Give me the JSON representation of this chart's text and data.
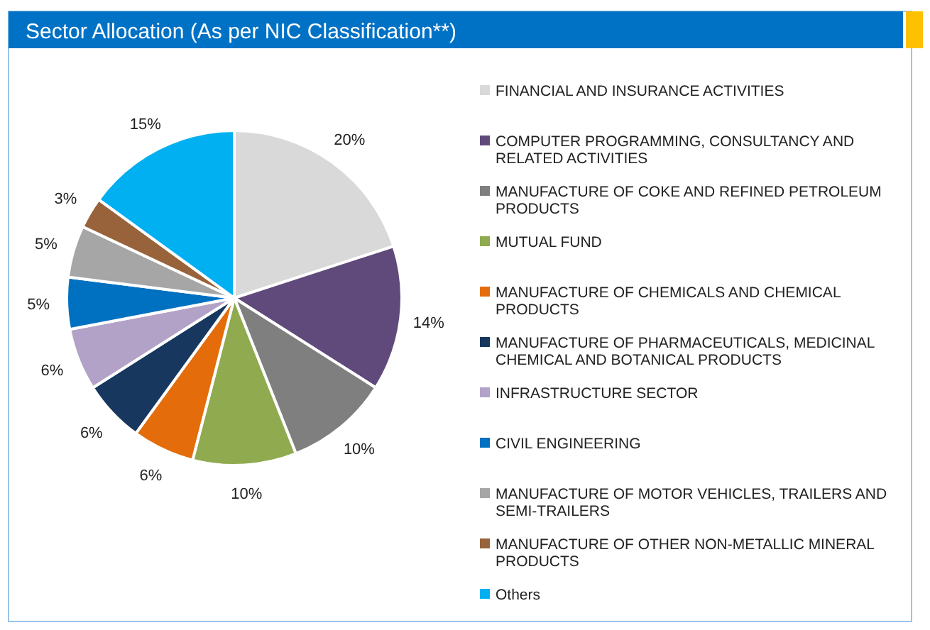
{
  "chart_data": {
    "type": "pie",
    "title": "Sector Allocation (As per NIC Classification**)",
    "categories": [
      "FINANCIAL AND INSURANCE ACTIVITIES",
      "COMPUTER PROGRAMMING, CONSULTANCY AND RELATED ACTIVITIES",
      "MANUFACTURE OF COKE AND REFINED PETROLEUM PRODUCTS",
      "MUTUAL FUND",
      "MANUFACTURE OF CHEMICALS AND CHEMICAL PRODUCTS",
      "MANUFACTURE OF PHARMACEUTICALS, MEDICINAL CHEMICAL AND BOTANICAL PRODUCTS",
      "INFRASTRUCTURE SECTOR",
      "CIVIL ENGINEERING",
      "MANUFACTURE OF MOTOR VEHICLES, TRAILERS AND SEMI-TRAILERS",
      "MANUFACTURE OF OTHER NON-METALLIC MINERAL PRODUCTS",
      "Others"
    ],
    "values": [
      20,
      14,
      10,
      10,
      6,
      6,
      6,
      5,
      5,
      3,
      15
    ],
    "value_labels": [
      "20%",
      "14%",
      "10%",
      "10%",
      "6%",
      "6%",
      "6%",
      "5%",
      "5%",
      "3%",
      "15%"
    ],
    "colors": [
      "#d9d9d9",
      "#604a7b",
      "#7f7f7f",
      "#8faa4f",
      "#e46c0a",
      "#17375e",
      "#b3a2c7",
      "#0070c0",
      "#a6a6a6",
      "#98633a",
      "#00b0f0"
    ],
    "legend": "right"
  }
}
